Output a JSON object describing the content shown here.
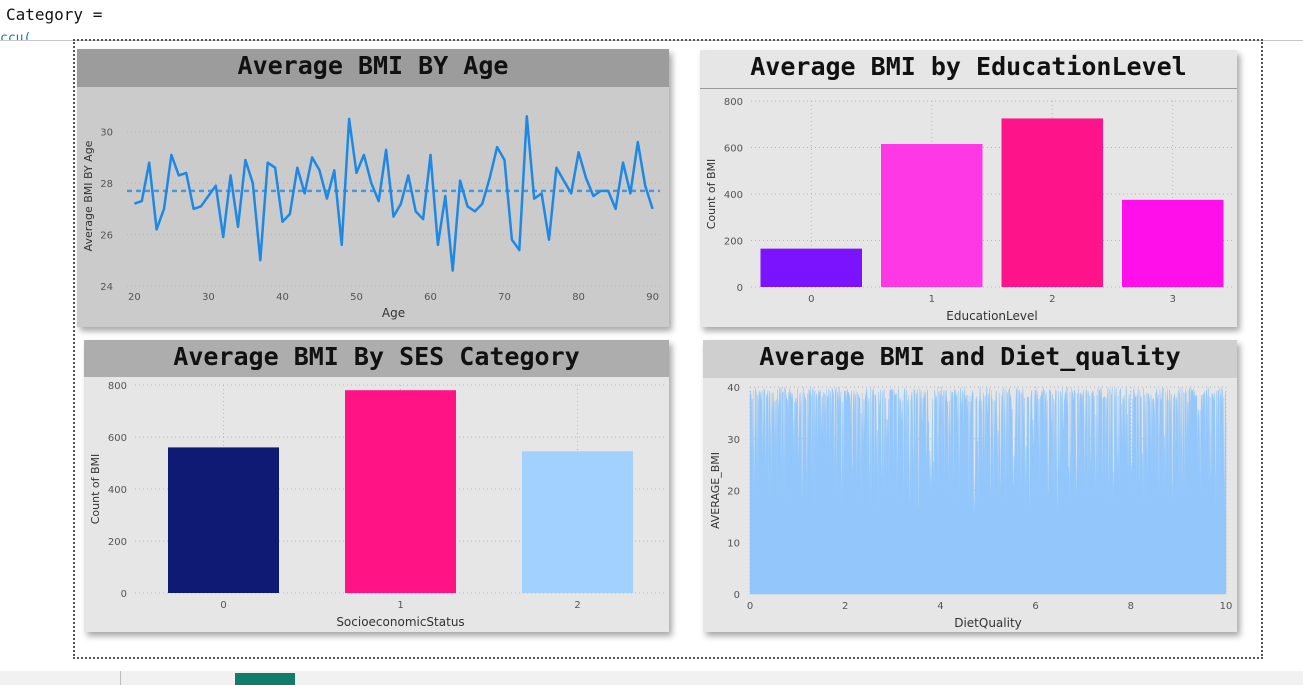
{
  "formula": {
    "text": "Category =",
    "next_line": "ccu("
  },
  "colors": {
    "age_line": "#1e88e5",
    "ses_bars": [
      "#0e1a73",
      "#ff1385",
      "#a2d0ff"
    ],
    "edu_bars": [
      "#7b13ff",
      "#ff38e5",
      "#ff138a",
      "#ff10ea"
    ],
    "diet_fill": "#93c7fb"
  },
  "chart_data": [
    {
      "type": "line",
      "title": "Average BMI BY Age",
      "xlabel": "Age",
      "ylabel": "Average BMI BY Age",
      "xlim": [
        19,
        91
      ],
      "ylim": [
        24,
        31
      ],
      "xticks": [
        20,
        30,
        40,
        50,
        60,
        70,
        80,
        90
      ],
      "yticks": [
        24,
        26,
        28,
        30
      ],
      "average_line": 27.7,
      "x": [
        20,
        21,
        22,
        23,
        24,
        25,
        26,
        27,
        28,
        29,
        30,
        31,
        32,
        33,
        34,
        35,
        36,
        37,
        38,
        39,
        40,
        41,
        42,
        43,
        44,
        45,
        46,
        47,
        48,
        49,
        50,
        51,
        52,
        53,
        54,
        55,
        56,
        57,
        58,
        59,
        60,
        61,
        62,
        63,
        64,
        65,
        66,
        67,
        68,
        69,
        70,
        71,
        72,
        73,
        74,
        75,
        76,
        77,
        78,
        79,
        80,
        81,
        82,
        83,
        84,
        85,
        86,
        87,
        88,
        89,
        90
      ],
      "y": [
        27.2,
        27.3,
        28.8,
        26.2,
        27.0,
        29.1,
        28.3,
        28.4,
        27.0,
        27.1,
        27.5,
        27.9,
        25.9,
        28.3,
        26.3,
        28.9,
        28.0,
        25.0,
        28.8,
        28.6,
        26.5,
        26.8,
        28.6,
        27.6,
        29.0,
        28.5,
        27.4,
        28.5,
        25.6,
        30.5,
        28.4,
        29.1,
        28.0,
        27.3,
        29.3,
        26.7,
        27.2,
        28.3,
        26.9,
        26.6,
        29.1,
        25.6,
        27.5,
        24.6,
        28.1,
        27.1,
        26.9,
        27.2,
        28.2,
        29.4,
        28.9,
        25.8,
        25.4,
        30.6,
        27.4,
        27.6,
        25.8,
        28.6,
        28.1,
        27.6,
        29.2,
        28.2,
        27.5,
        27.7,
        27.7,
        27.0,
        28.8,
        27.6,
        29.6,
        27.9,
        27.0
      ]
    },
    {
      "type": "bar",
      "title": "Average BMI by EducationLevel",
      "xlabel": "EducationLevel",
      "ylabel": "Count of BMI",
      "categories": [
        "0",
        "1",
        "2",
        "3"
      ],
      "values": [
        165,
        615,
        725,
        375
      ],
      "ylim": [
        0,
        800
      ],
      "yticks": [
        0,
        200,
        400,
        600,
        800
      ]
    },
    {
      "type": "bar",
      "title": "Average BMI By SES Category",
      "xlabel": "SocioeconomicStatus",
      "ylabel": "Count of BMI",
      "categories": [
        "0",
        "1",
        "2"
      ],
      "values": [
        560,
        780,
        545
      ],
      "ylim": [
        0,
        800
      ],
      "yticks": [
        0,
        200,
        400,
        600,
        800
      ]
    },
    {
      "type": "area",
      "title": "Average BMI and Diet_quality",
      "xlabel": "DietQuality",
      "ylabel": "AVERAGE_BMI",
      "xlim": [
        0,
        10
      ],
      "ylim": [
        0,
        40
      ],
      "xticks": [
        0,
        2,
        4,
        6,
        8,
        10
      ],
      "yticks": [
        0,
        10,
        20,
        30,
        40
      ],
      "value_range": [
        15,
        40
      ]
    }
  ]
}
